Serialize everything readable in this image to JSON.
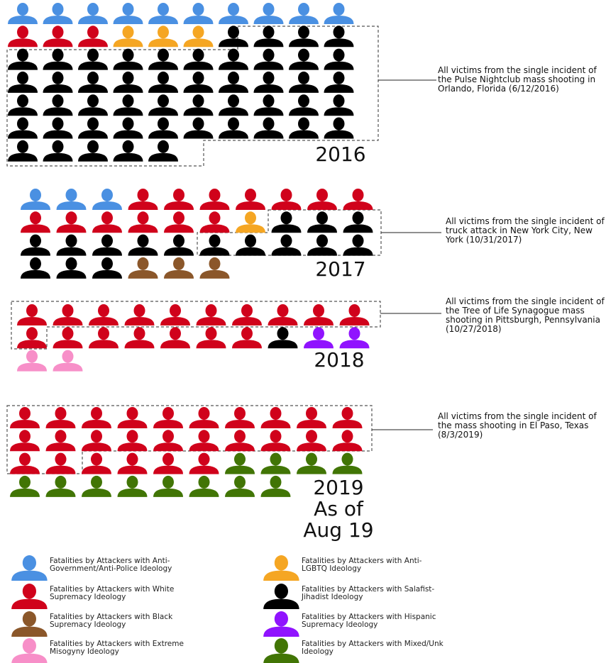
{
  "chart_data": {
    "type": "pictogram",
    "categories": [
      "2016",
      "2017",
      "2018",
      "2019\nAs of\nAug 19"
    ],
    "annotations": [
      "All victims from the single incident of the Pulse Nightclub mass shooting in Orlando, Florida (6/12/2016)",
      "All victims from the single incident of truck attack in New York City, New York (10/31/2017)",
      "All victims from the single incident of the Tree of Life Synagogue mass shooting in Pittsburgh, Pennsylvania (10/27/2018)",
      "All victims from the single incident of the mass shooting in El Paso, Texas (8/3/2019)"
    ],
    "series": [
      {
        "name": "Fatalities by Attackers with Anti-Government/Anti-Police Ideology",
        "color": "#4a90e2",
        "values": [
          10,
          3,
          0,
          0
        ]
      },
      {
        "name": "Fatalities by Attackers with White Supremacy Ideology",
        "color": "#d0021b",
        "values": [
          3,
          13,
          17,
          26
        ]
      },
      {
        "name": "Fatalities by Attackers with Anti-LGBTQ Ideology",
        "color": "#f5a623",
        "values": [
          3,
          1,
          0,
          0
        ]
      },
      {
        "name": "Fatalities by Attackers with Salafist-Jihadist Ideology",
        "color": "#000000",
        "values": [
          49,
          16,
          1,
          0
        ]
      },
      {
        "name": "Fatalities by Attackers with Black Supremacy Ideology",
        "color": "#8b572a",
        "values": [
          0,
          3,
          0,
          0
        ]
      },
      {
        "name": "Fatalities by Attackers with Hispanic Supremacy Ideology",
        "color": "#9013fe",
        "values": [
          0,
          0,
          2,
          0
        ]
      },
      {
        "name": "Fatalities by Attackers with Extreme Misogyny Ideology",
        "color": "#f78fc8",
        "values": [
          0,
          0,
          2,
          0
        ]
      },
      {
        "name": "Fatalities by Attackers with Mixed/Unk Ideology",
        "color": "#417505",
        "values": [
          0,
          0,
          0,
          12
        ]
      }
    ]
  }
}
